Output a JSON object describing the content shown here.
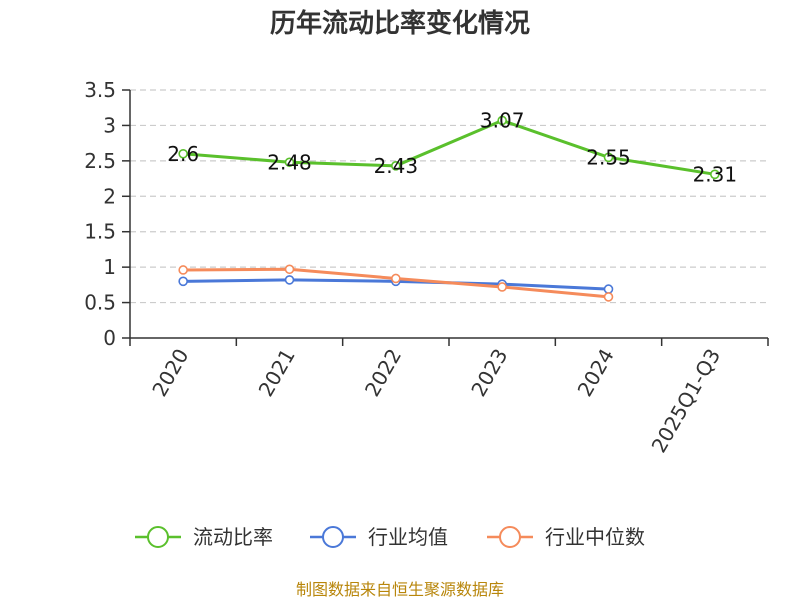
{
  "chart_data": {
    "type": "line",
    "title": "历年流动比率变化情况",
    "categories": [
      "2020",
      "2021",
      "2022",
      "2023",
      "2024",
      "2025Q1-Q3"
    ],
    "ylim": [
      0,
      3.5
    ],
    "yticks": [
      "0",
      "0.5",
      "1",
      "1.5",
      "2",
      "2.5",
      "3",
      "3.5"
    ],
    "grid": true,
    "legend_position": "bottom",
    "series": [
      {
        "name": "流动比率",
        "color": "#5ac02c",
        "values": [
          2.6,
          2.48,
          2.43,
          3.07,
          2.55,
          2.31
        ],
        "labels": [
          "2.6",
          "2.48",
          "2.43",
          "3.07",
          "2.55",
          "2.31"
        ]
      },
      {
        "name": "行业均值",
        "color": "#4a78d8",
        "values": [
          0.8,
          0.82,
          0.8,
          0.76,
          0.69,
          null
        ]
      },
      {
        "name": "行业中位数",
        "color": "#f58b5b",
        "values": [
          0.96,
          0.97,
          0.84,
          0.72,
          0.58,
          null
        ]
      }
    ]
  },
  "source": "制图数据来自恒生聚源数据库"
}
